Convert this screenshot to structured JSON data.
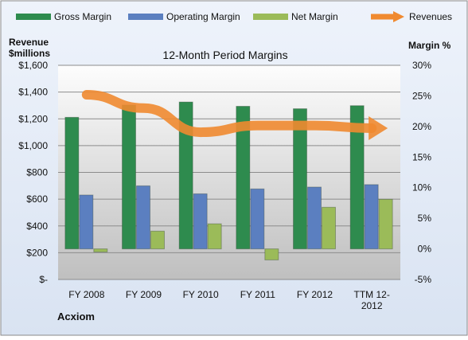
{
  "chart_data": {
    "type": "bar",
    "title": "12-Month Period Margins",
    "company_label": "Acxiom",
    "categories": [
      "FY 2008",
      "FY 2009",
      "FY 2010",
      "FY 2011",
      "FY 2012",
      "TTM 12-2012"
    ],
    "left_axis": {
      "label_line1": "Revenue",
      "label_line2": "$millions",
      "range": [
        0,
        1600
      ],
      "ticks": [
        "$-",
        "$200",
        "$400",
        "$600",
        "$800",
        "$1,000",
        "$1,200",
        "$1,400",
        "$1,600"
      ]
    },
    "right_axis": {
      "label": "Margin %",
      "range": [
        -5,
        30
      ],
      "ticks": [
        "-5%",
        "0%",
        "5%",
        "10%",
        "15%",
        "20%",
        "25%",
        "30%"
      ]
    },
    "series": [
      {
        "name": "Gross Margin",
        "kind": "bar",
        "axis": "right",
        "color": "#2e8b4e",
        "values": [
          21.5,
          23.5,
          24.0,
          23.3,
          22.9,
          23.4
        ]
      },
      {
        "name": "Operating Margin",
        "kind": "bar",
        "axis": "right",
        "color": "#5b7fc0",
        "values": [
          8.8,
          10.3,
          9.0,
          9.8,
          10.1,
          10.5
        ]
      },
      {
        "name": "Net Margin",
        "kind": "bar",
        "axis": "right",
        "color": "#9bbb59",
        "values": [
          -0.5,
          2.9,
          4.1,
          -1.8,
          6.8,
          8.1
        ]
      },
      {
        "name": "Revenues",
        "kind": "line",
        "axis": "left",
        "color": "#f08a30",
        "values": [
          1380,
          1280,
          1100,
          1150,
          1150,
          1130
        ]
      }
    ],
    "grid": true,
    "legend_position": "top"
  }
}
